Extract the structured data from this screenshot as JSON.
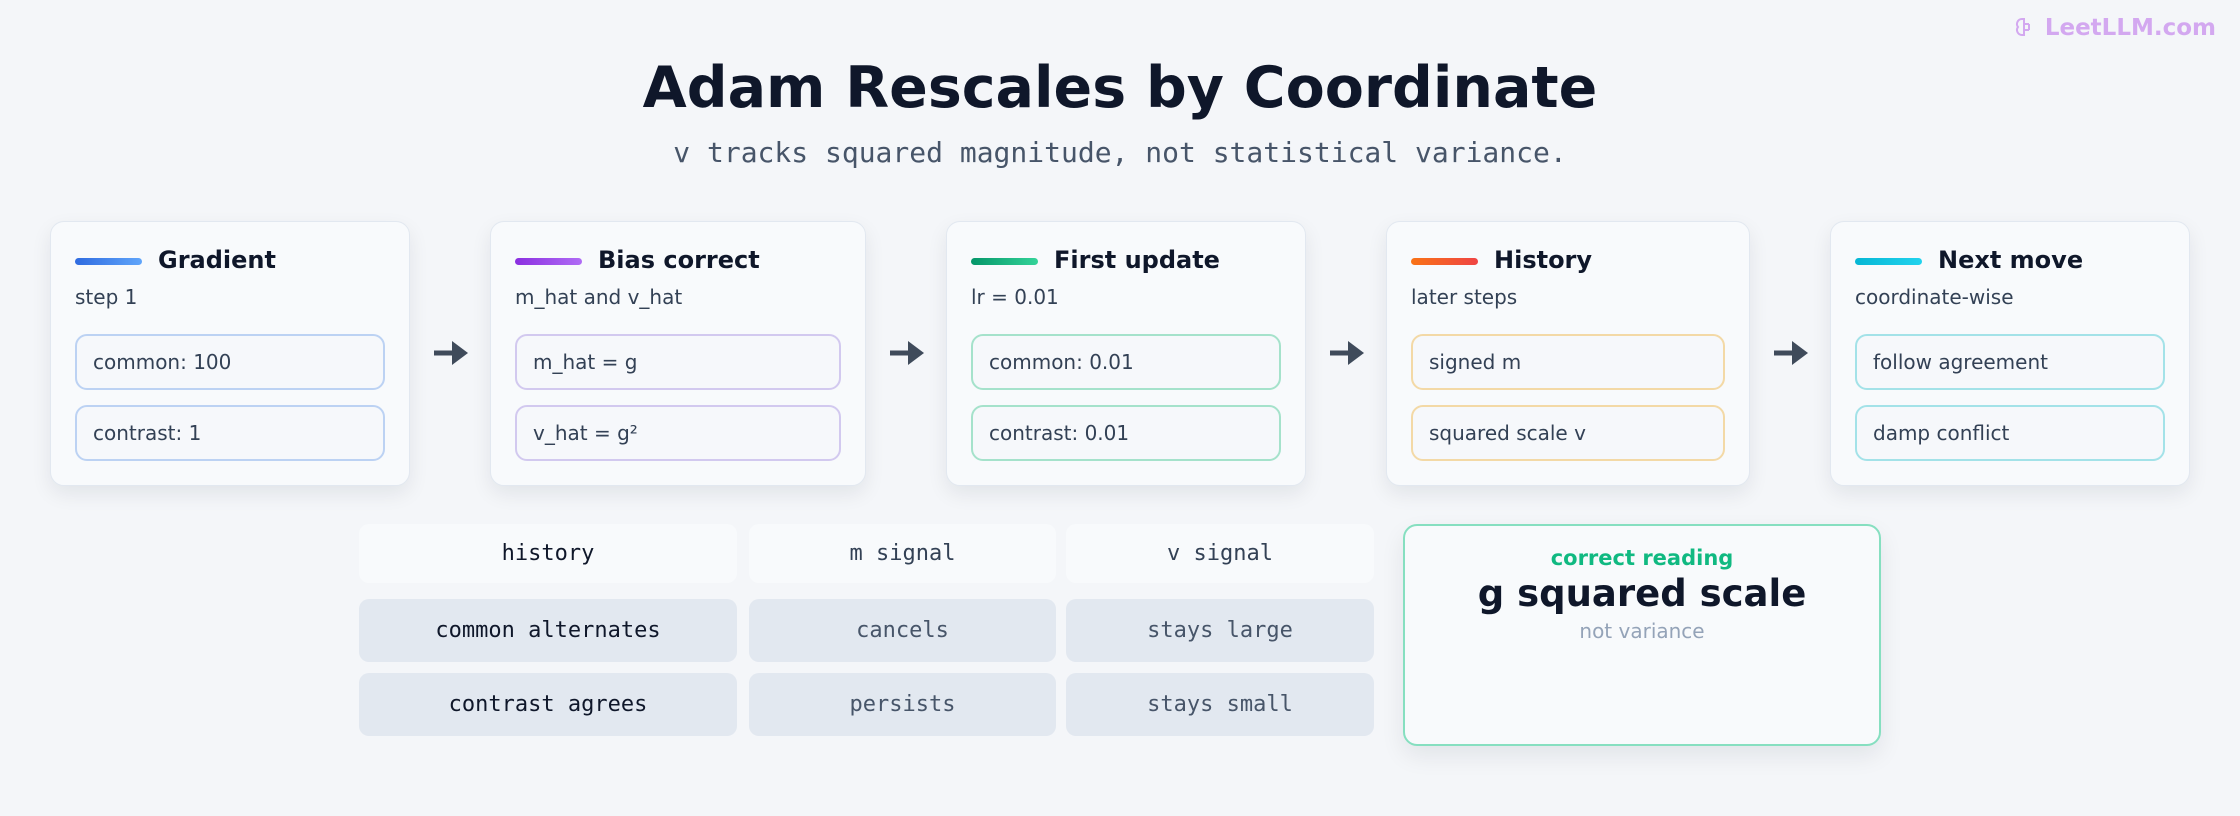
{
  "header": {
    "title": "Adam Rescales by Coordinate",
    "subtitle": "v tracks squared magnitude, not statistical variance.",
    "watermark": "LeetLLM.com"
  },
  "cards": [
    {
      "title": "Gradient",
      "subtitle": "step 1",
      "items": [
        "common: 100",
        "contrast: 1"
      ]
    },
    {
      "title": "Bias correct",
      "subtitle": "m_hat and v_hat",
      "items": [
        "m_hat = g",
        "v_hat = g²"
      ]
    },
    {
      "title": "First update",
      "subtitle": "lr = 0.01",
      "items": [
        "common: 0.01",
        "contrast: 0.01"
      ]
    },
    {
      "title": "History",
      "subtitle": "later steps",
      "items": [
        "signed m",
        "squared scale v"
      ]
    },
    {
      "title": "Next move",
      "subtitle": "coordinate-wise",
      "items": [
        "follow agreement",
        "damp conflict"
      ]
    }
  ],
  "table": {
    "headers": [
      "history",
      "m signal",
      "v signal"
    ],
    "rows": [
      [
        "common alternates",
        "cancels",
        "stays large"
      ],
      [
        "contrast agrees",
        "persists",
        "stays small"
      ]
    ]
  },
  "callout": {
    "label": "correct reading",
    "value": "g squared scale",
    "note": "not variance"
  }
}
